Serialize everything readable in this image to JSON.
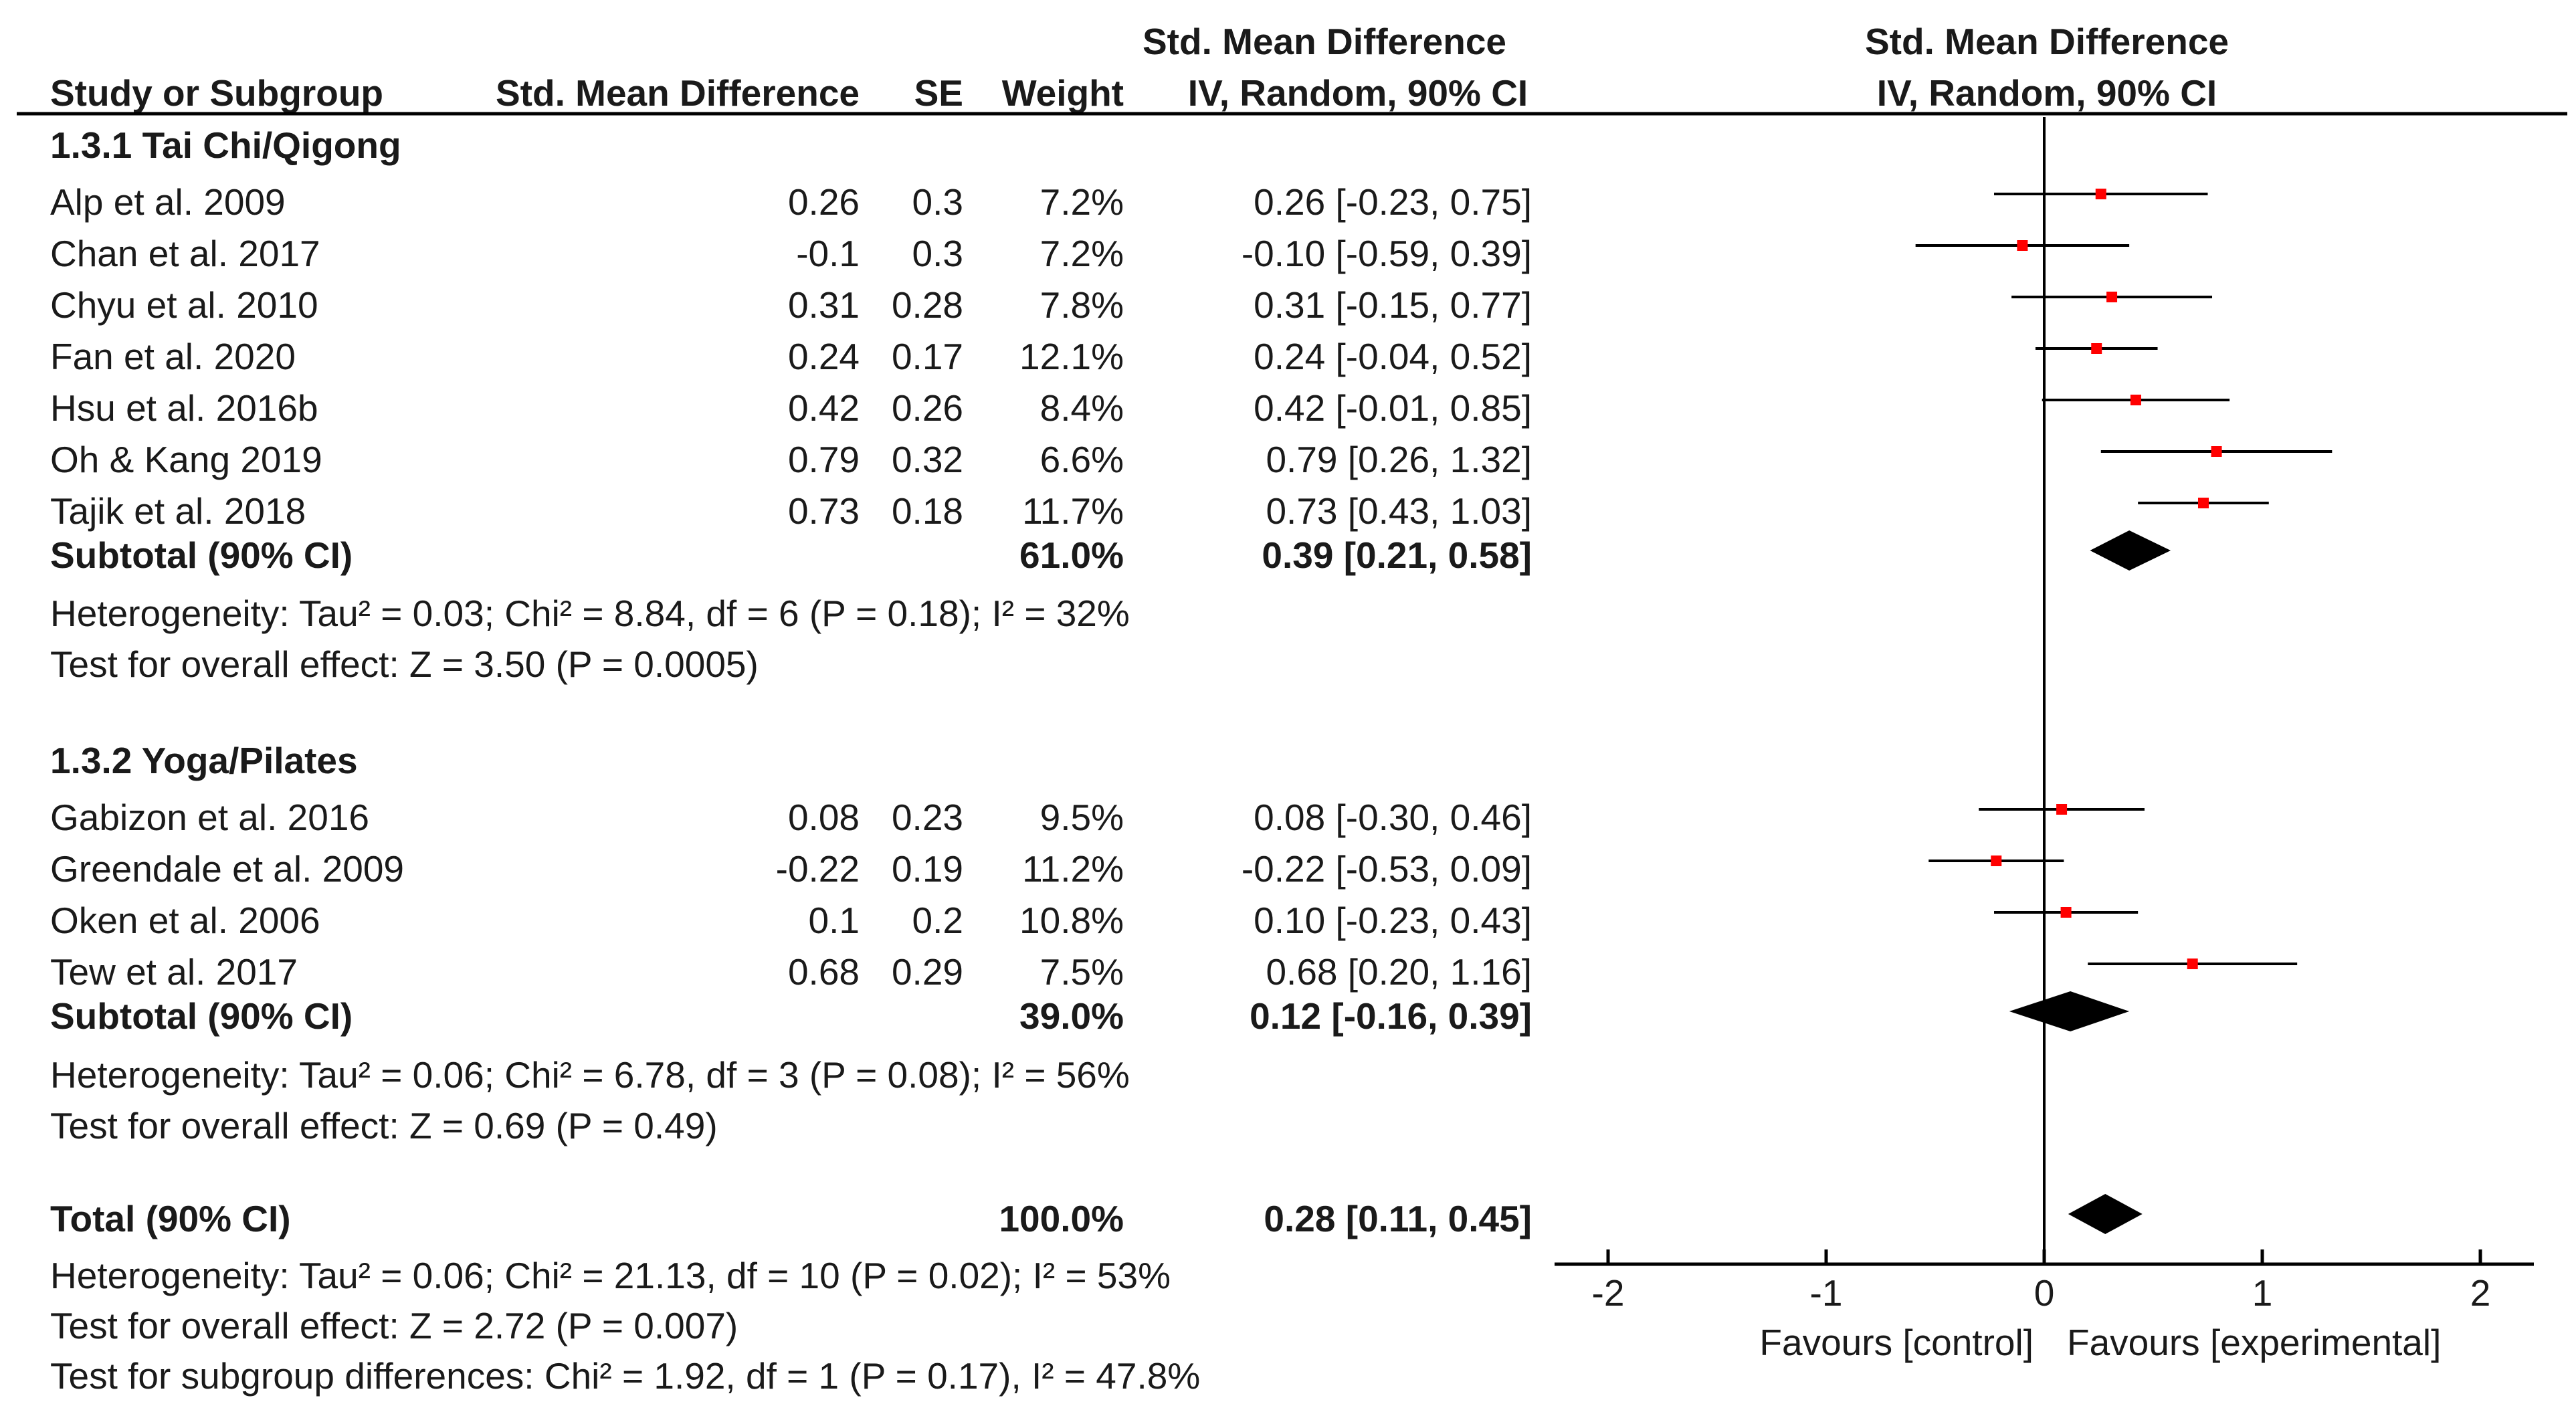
{
  "headers": {
    "study": "Study or Subgroup",
    "smd": "Std. Mean Difference",
    "se": "SE",
    "weight": "Weight",
    "ci_line1": "Std. Mean Difference",
    "ci_line2": "IV, Random, 90% CI",
    "plot_line1": "Std. Mean Difference",
    "plot_line2": "IV, Random, 90% CI"
  },
  "footer": {
    "total_label": "Total (90% CI)",
    "total_weight": "100.0%",
    "total_ci": "0.28 [0.11, 0.45]",
    "total_heterogeneity": "Heterogeneity: Tau² = 0.06; Chi² = 21.13, df = 10 (P = 0.02); I² = 53%",
    "total_overall": "Test for overall effect: Z = 2.72 (P = 0.007)",
    "subgroup_diff": "Test for subgroup differences: Chi² = 1.92, df = 1 (P = 0.17), I² = 47.8%"
  },
  "chart_data": {
    "type": "forest",
    "xlim": [
      -2,
      2
    ],
    "x_ticks": [
      -2,
      -1,
      0,
      1,
      2
    ],
    "x_tick_labels": [
      "-2",
      "-1",
      "0",
      "1",
      "2"
    ],
    "favours_left": "Favours [control]",
    "favours_right": "Favours [experimental]",
    "marker_color": "#ff0000",
    "line_color": "#000000",
    "subgroups": [
      {
        "label": "1.3.1 Tai Chi/Qigong",
        "studies": [
          {
            "study": "Alp et al. 2009",
            "smd": "0.26",
            "se": "0.3",
            "weight": "7.2%",
            "ci": "0.26 [-0.23, 0.75]",
            "est": 0.26,
            "lo": -0.23,
            "hi": 0.75
          },
          {
            "study": "Chan et al. 2017",
            "smd": "-0.1",
            "se": "0.3",
            "weight": "7.2%",
            "ci": "-0.10 [-0.59, 0.39]",
            "est": -0.1,
            "lo": -0.59,
            "hi": 0.39
          },
          {
            "study": "Chyu et al. 2010",
            "smd": "0.31",
            "se": "0.28",
            "weight": "7.8%",
            "ci": "0.31 [-0.15, 0.77]",
            "est": 0.31,
            "lo": -0.15,
            "hi": 0.77
          },
          {
            "study": "Fan et al. 2020",
            "smd": "0.24",
            "se": "0.17",
            "weight": "12.1%",
            "ci": "0.24 [-0.04, 0.52]",
            "est": 0.24,
            "lo": -0.04,
            "hi": 0.52
          },
          {
            "study": "Hsu et al. 2016b",
            "smd": "0.42",
            "se": "0.26",
            "weight": "8.4%",
            "ci": "0.42 [-0.01, 0.85]",
            "est": 0.42,
            "lo": -0.01,
            "hi": 0.85
          },
          {
            "study": "Oh & Kang 2019",
            "smd": "0.79",
            "se": "0.32",
            "weight": "6.6%",
            "ci": "0.79 [0.26, 1.32]",
            "est": 0.79,
            "lo": 0.26,
            "hi": 1.32
          },
          {
            "study": "Tajik et al. 2018",
            "smd": "0.73",
            "se": "0.18",
            "weight": "11.7%",
            "ci": "0.73 [0.43, 1.03]",
            "est": 0.73,
            "lo": 0.43,
            "hi": 1.03
          }
        ],
        "subtotal_label": "Subtotal (90% CI)",
        "subtotal_weight": "61.0%",
        "subtotal_ci": "0.39 [0.21, 0.58]",
        "subtotal_est": 0.39,
        "subtotal_lo": 0.21,
        "subtotal_hi": 0.58,
        "heterogeneity": "Heterogeneity: Tau² = 0.03; Chi² = 8.84, df = 6 (P = 0.18); I² = 32%",
        "overall": "Test for overall effect: Z = 3.50 (P = 0.0005)"
      },
      {
        "label": "1.3.2 Yoga/Pilates",
        "studies": [
          {
            "study": "Gabizon et al. 2016",
            "smd": "0.08",
            "se": "0.23",
            "weight": "9.5%",
            "ci": "0.08 [-0.30, 0.46]",
            "est": 0.08,
            "lo": -0.3,
            "hi": 0.46
          },
          {
            "study": "Greendale et al. 2009",
            "smd": "-0.22",
            "se": "0.19",
            "weight": "11.2%",
            "ci": "-0.22 [-0.53, 0.09]",
            "est": -0.22,
            "lo": -0.53,
            "hi": 0.09
          },
          {
            "study": "Oken et al. 2006",
            "smd": "0.1",
            "se": "0.2",
            "weight": "10.8%",
            "ci": "0.10 [-0.23, 0.43]",
            "est": 0.1,
            "lo": -0.23,
            "hi": 0.43
          },
          {
            "study": "Tew et al. 2017",
            "smd": "0.68",
            "se": "0.29",
            "weight": "7.5%",
            "ci": "0.68 [0.20, 1.16]",
            "est": 0.68,
            "lo": 0.2,
            "hi": 1.16
          }
        ],
        "subtotal_label": "Subtotal (90% CI)",
        "subtotal_weight": "39.0%",
        "subtotal_ci": "0.12 [-0.16, 0.39]",
        "subtotal_est": 0.12,
        "subtotal_lo": -0.16,
        "subtotal_hi": 0.39,
        "heterogeneity": "Heterogeneity: Tau² = 0.06; Chi² = 6.78, df = 3 (P = 0.08); I² = 56%",
        "overall": "Test for overall effect: Z = 0.69 (P = 0.49)"
      }
    ],
    "total": {
      "est": 0.28,
      "lo": 0.11,
      "hi": 0.45
    }
  }
}
